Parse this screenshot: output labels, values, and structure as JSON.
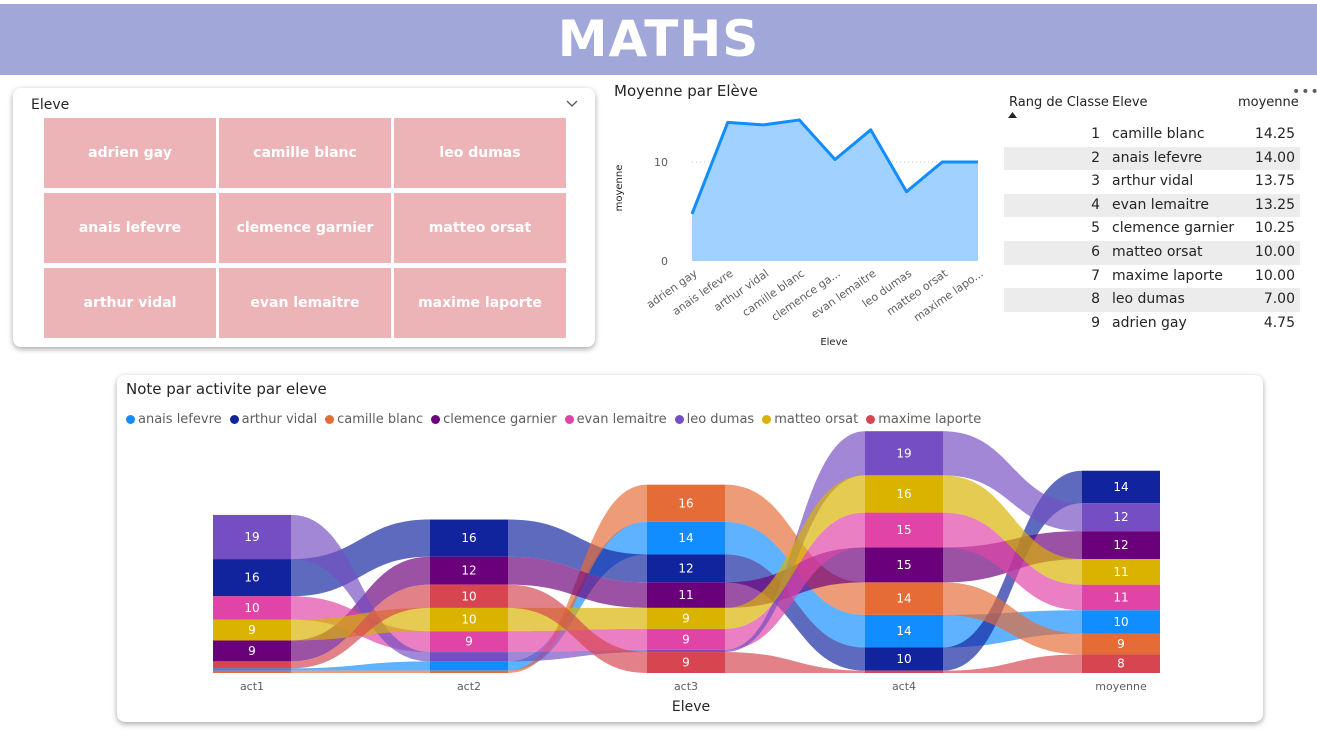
{
  "banner": {
    "title": "MATHS",
    "color": "#a1a8d9"
  },
  "slicer": {
    "title": "Eleve",
    "tile_color": "#edb4b8",
    "tiles": [
      "adrien gay",
      "camille blanc",
      "leo dumas",
      "anais lefevre",
      "clemence garnier",
      "matteo orsat",
      "arthur vidal",
      "evan lemaitre",
      "maxime laporte"
    ]
  },
  "chart_data": [
    {
      "type": "area",
      "title": "Moyenne par Elève",
      "xlabel": "Eleve",
      "ylabel": "moyenne",
      "categories": [
        "adrien gay",
        "anais lefevre",
        "arthur vidal",
        "camille blanc",
        "clemence ga...",
        "evan lemaitre",
        "leo dumas",
        "matteo orsat",
        "maxime lapo..."
      ],
      "values": [
        4.75,
        14.0,
        13.75,
        14.25,
        10.25,
        13.25,
        7.0,
        10.0,
        10.0
      ],
      "yticks": [
        0,
        10
      ],
      "ylim": [
        0,
        15
      ],
      "grid": true,
      "line_color": "#118dff",
      "fill_color": "#a0d1ff"
    },
    {
      "type": "sankey",
      "title": "Note par activite par eleve",
      "xlabel": "Eleve",
      "stages": [
        "act1",
        "act2",
        "act3",
        "act4",
        "moyenne"
      ],
      "series": [
        {
          "name": "anais lefevre",
          "color": "#118dff",
          "values": [
            1,
            4,
            14,
            14,
            10
          ]
        },
        {
          "name": "arthur vidal",
          "color": "#12239e",
          "values": [
            16,
            16,
            12,
            10,
            14
          ]
        },
        {
          "name": "camille blanc",
          "color": "#e66c37",
          "values": [
            1,
            1,
            16,
            14,
            9
          ]
        },
        {
          "name": "clemence garnier",
          "color": "#6b007b",
          "values": [
            9,
            12,
            11,
            15,
            12
          ]
        },
        {
          "name": "evan lemaitre",
          "color": "#e044a7",
          "values": [
            10,
            9,
            9,
            15,
            11
          ]
        },
        {
          "name": "leo dumas",
          "color": "#744ec2",
          "values": [
            19,
            4,
            1,
            19,
            12
          ]
        },
        {
          "name": "matteo orsat",
          "color": "#d9b300",
          "values": [
            9,
            10,
            9,
            16,
            11
          ]
        },
        {
          "name": "maxime laporte",
          "color": "#d64550",
          "values": [
            3,
            10,
            9,
            1,
            8
          ]
        }
      ],
      "stack_order": [
        [
          "leo dumas",
          "arthur vidal",
          "evan lemaitre",
          "matteo orsat",
          "clemence garnier",
          "maxime laporte",
          "anais lefevre",
          "camille blanc"
        ],
        [
          "arthur vidal",
          "clemence garnier",
          "maxime laporte",
          "matteo orsat",
          "evan lemaitre",
          "leo dumas",
          "anais lefevre",
          "camille blanc"
        ],
        [
          "camille blanc",
          "anais lefevre",
          "arthur vidal",
          "clemence garnier",
          "matteo orsat",
          "evan lemaitre",
          "leo dumas",
          "maxime laporte"
        ],
        [
          "leo dumas",
          "matteo orsat",
          "evan lemaitre",
          "clemence garnier",
          "camille blanc",
          "anais lefevre",
          "arthur vidal",
          "maxime laporte"
        ],
        [
          "arthur vidal",
          "leo dumas",
          "clemence garnier",
          "matteo orsat",
          "evan lemaitre",
          "anais lefevre",
          "camille blanc",
          "maxime laporte"
        ]
      ],
      "label_min": 7
    }
  ],
  "rank_table": {
    "columns": [
      "Rang de Classe",
      "Eleve",
      "moyenne"
    ],
    "rows": [
      {
        "rank": "1",
        "eleve": "camille blanc",
        "moyenne": "14.25"
      },
      {
        "rank": "2",
        "eleve": "anais lefevre",
        "moyenne": "14.00"
      },
      {
        "rank": "3",
        "eleve": "arthur vidal",
        "moyenne": "13.75"
      },
      {
        "rank": "4",
        "eleve": "evan lemaitre",
        "moyenne": "13.25"
      },
      {
        "rank": "5",
        "eleve": "clemence garnier",
        "moyenne": "10.25"
      },
      {
        "rank": "6",
        "eleve": "matteo orsat",
        "moyenne": "10.00"
      },
      {
        "rank": "7",
        "eleve": "maxime laporte",
        "moyenne": "10.00"
      },
      {
        "rank": "8",
        "eleve": "leo dumas",
        "moyenne": "7.00"
      },
      {
        "rank": "9",
        "eleve": "adrien gay",
        "moyenne": "4.75"
      }
    ],
    "sort_icon": "sort-ascending-icon"
  },
  "icons": {
    "slicer_dropdown": "chevron-down-icon",
    "visual_menu": "more-options-icon"
  }
}
